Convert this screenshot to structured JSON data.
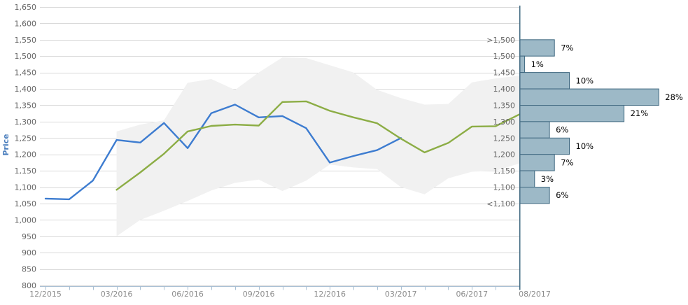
{
  "chart_data": {
    "type": "line",
    "title": "",
    "ylabel": "Price",
    "y_axis": {
      "min": 800,
      "max": 1650,
      "step": 50
    },
    "x_months": [
      "12/2015",
      "01/2016",
      "02/2016",
      "03/2016",
      "04/2016",
      "05/2016",
      "06/2016",
      "07/2016",
      "08/2016",
      "09/2016",
      "10/2016",
      "11/2016",
      "12/2016",
      "01/2017",
      "02/2017",
      "03/2017",
      "04/2017",
      "05/2017",
      "06/2017",
      "07/2017",
      "08/2017"
    ],
    "x_tick_labels": [
      {
        "label": "12/2015",
        "month_index": 0
      },
      {
        "label": "03/2016",
        "month_index": 3
      },
      {
        "label": "06/2016",
        "month_index": 6
      },
      {
        "label": "09/2016",
        "month_index": 9
      },
      {
        "label": "12/2016",
        "month_index": 12
      },
      {
        "label": "03/2017",
        "month_index": 15
      },
      {
        "label": "06/2017",
        "month_index": 18
      },
      {
        "label": "08/2017",
        "month_index": 20
      }
    ],
    "series": [
      {
        "name": "price-history-line",
        "color": "#3d7cd0",
        "start_month_index": 0,
        "values": [
          1065,
          1063,
          1120,
          1244,
          1236,
          1296,
          1219,
          1326,
          1352,
          1313,
          1317,
          1280,
          1175,
          1195,
          1213,
          1250
        ]
      },
      {
        "name": "forecast-mean-line",
        "color": "#8cad45",
        "start_month_index": 3,
        "values": [
          1092,
          1145,
          1202,
          1270,
          1287,
          1291,
          1288,
          1360,
          1362,
          1333,
          1313,
          1295,
          1248,
          1206,
          1235,
          1285,
          1286,
          1322
        ]
      }
    ],
    "range_band": {
      "color": "#f1f1f1",
      "start_month_index": 3,
      "top": [
        1270,
        1291,
        1304,
        1419,
        1430,
        1397,
        1450,
        1496,
        1494,
        1472,
        1450,
        1397,
        1372,
        1352,
        1354,
        1420,
        1432,
        1440
      ],
      "bottom": [
        950,
        1000,
        1028,
        1058,
        1090,
        1113,
        1123,
        1088,
        1120,
        1169,
        1160,
        1155,
        1100,
        1078,
        1127,
        1147,
        1150,
        1172
      ]
    },
    "histogram": {
      "bar_fill": "#9db9c7",
      "bar_border": "#3f6880",
      "axis_color": "#3f6880",
      "first_boundary_value": 1550,
      "bucket_size": 50,
      "boundary_labels": [
        ">1,500",
        "1,500",
        "1,450",
        "1,400",
        "1,350",
        "1,300",
        "1,250",
        "1,200",
        "1,150",
        "1,100",
        "<1,100"
      ],
      "bars": [
        {
          "bucket": "above 1,500",
          "pct": 7,
          "label": "7%"
        },
        {
          "bucket": "1,450–1,500",
          "pct": 1,
          "label": "1%"
        },
        {
          "bucket": "1,400–1,450",
          "pct": 10,
          "label": "10%"
        },
        {
          "bucket": "1,350–1,400",
          "pct": 28,
          "label": "28%"
        },
        {
          "bucket": "1,300–1,350",
          "pct": 21,
          "label": "21%"
        },
        {
          "bucket": "1,250–1,300",
          "pct": 6,
          "label": "6%"
        },
        {
          "bucket": "1,200–1,250",
          "pct": 10,
          "label": "10%"
        },
        {
          "bucket": "1,150–1,200",
          "pct": 7,
          "label": "7%"
        },
        {
          "bucket": "1,100–1,150",
          "pct": 3,
          "label": "3%"
        },
        {
          "bucket": "below 1,100",
          "pct": 6,
          "label": "6%"
        }
      ]
    },
    "colors": {
      "grid": "#d9d9d9",
      "x_axis": "#a8bfd3",
      "x_label": "#8d8d8d",
      "y_label": "#666666",
      "boundary_label": "#666666",
      "ylabel_title": "#4a7ebd",
      "pct_label": "#000000"
    }
  }
}
